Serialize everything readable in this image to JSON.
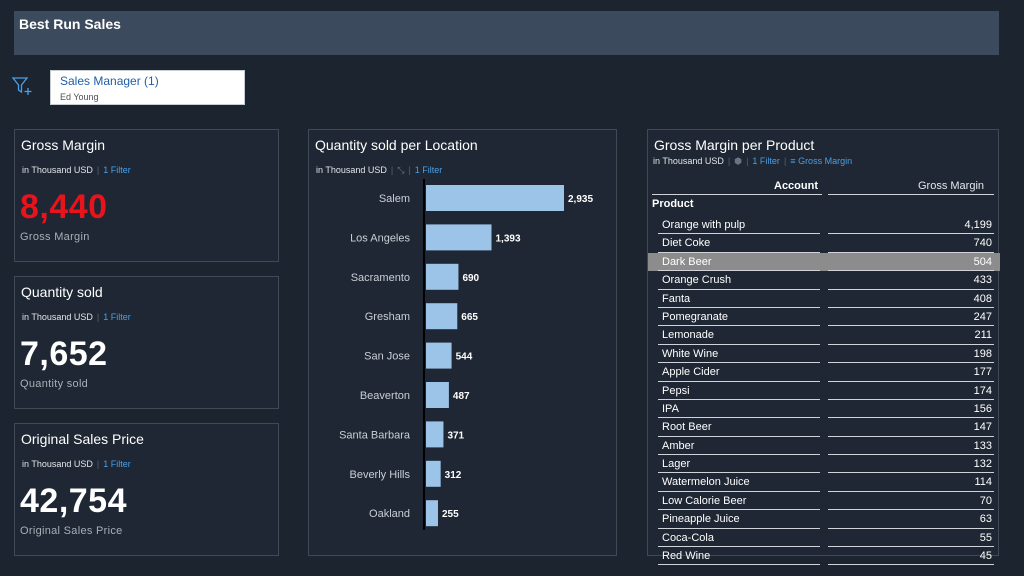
{
  "header": {
    "title": "Best Run Sales"
  },
  "filter": {
    "title": "Sales Manager (1)",
    "value": "Ed Young"
  },
  "kpis": [
    {
      "title": "Gross Margin",
      "unit": "in Thousand USD",
      "filter": "1 Filter",
      "value": "8,440",
      "label": "Gross Margin",
      "color": "#e8141c"
    },
    {
      "title": "Quantity sold",
      "unit": "in Thousand USD",
      "filter": "1 Filter",
      "value": "7,652",
      "label": "Quantity sold",
      "color": "#ffffff"
    },
    {
      "title": "Original Sales Price",
      "unit": "in Thousand USD",
      "filter": "1 Filter",
      "value": "42,754",
      "label": "Original Sales Price",
      "color": "#ffffff"
    }
  ],
  "location_card": {
    "title": "Quantity sold per Location",
    "unit": "in Thousand USD",
    "filter": "1 Filter"
  },
  "chart_data": {
    "type": "bar",
    "orientation": "horizontal",
    "title": "Quantity sold per Location",
    "categories": [
      "Salem",
      "Los Angeles",
      "Sacramento",
      "Gresham",
      "San Jose",
      "Beaverton",
      "Santa Barbara",
      "Beverly Hills",
      "Oakland"
    ],
    "values": [
      2935,
      1393,
      690,
      665,
      544,
      487,
      371,
      312,
      255
    ],
    "value_labels": [
      "2,935",
      "1,393",
      "690",
      "665",
      "544",
      "487",
      "371",
      "312",
      "255"
    ],
    "bar_color": "#9cc3e8",
    "xlim": [
      0,
      2935
    ]
  },
  "product_table": {
    "title": "Gross Margin per Product",
    "unit": "in Thousand USD",
    "filter": "1 Filter",
    "sort": "Gross Margin",
    "col_account": "Account",
    "col_value": "Gross Margin",
    "row_header": "Product",
    "rows": [
      {
        "name": "Orange with pulp",
        "value": "4,199"
      },
      {
        "name": "Diet Coke",
        "value": "740"
      },
      {
        "name": "Dark Beer",
        "value": "504",
        "selected": true
      },
      {
        "name": "Orange Crush",
        "value": "433"
      },
      {
        "name": "Fanta",
        "value": "408"
      },
      {
        "name": "Pomegranate",
        "value": "247"
      },
      {
        "name": "Lemonade",
        "value": "211"
      },
      {
        "name": "White Wine",
        "value": "198"
      },
      {
        "name": "Apple Cider",
        "value": "177"
      },
      {
        "name": "Pepsi",
        "value": "174"
      },
      {
        "name": "IPA",
        "value": "156"
      },
      {
        "name": "Root Beer",
        "value": "147"
      },
      {
        "name": "Amber",
        "value": "133"
      },
      {
        "name": "Lager",
        "value": "132"
      },
      {
        "name": "Watermelon Juice",
        "value": "114"
      },
      {
        "name": "Low Calorie Beer",
        "value": "70"
      },
      {
        "name": "Pineapple Juice",
        "value": "63"
      },
      {
        "name": "Coca-Cola",
        "value": "55"
      },
      {
        "name": "Red Wine",
        "value": "45"
      }
    ]
  }
}
